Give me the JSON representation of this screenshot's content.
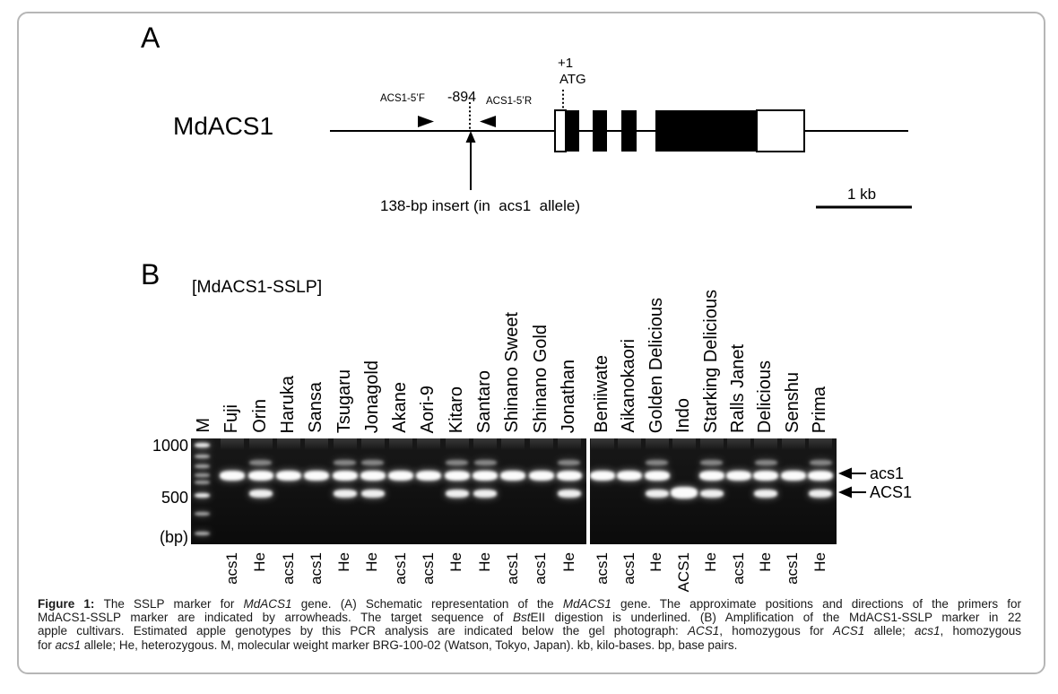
{
  "panel_a": {
    "label": "A",
    "gene_name": "MdACS1",
    "forward_primer": "ACS1-5’F",
    "reverse_primer": "ACS1-5’R",
    "insert_position": "-894",
    "tss": "+1",
    "start_codon": "ATG",
    "insert_note": "138-bp insert (in  acs1  allele)",
    "scale_label": "1 kb"
  },
  "panel_b": {
    "label": "B",
    "assay_title": "[MdACS1-SSLP]",
    "marker_lane_label": "M",
    "ladder": {
      "top_label": "1000",
      "mid_label": "500",
      "unit_label": "(bp)"
    },
    "band_labels": {
      "upper": "acs1",
      "lower": "ACS1"
    },
    "sections": [
      {
        "lanes": [
          {
            "name": "Fuji",
            "genotype": "acs1"
          },
          {
            "name": "Orin",
            "genotype": "He"
          },
          {
            "name": "Haruka",
            "genotype": "acs1"
          },
          {
            "name": "Sansa",
            "genotype": "acs1"
          },
          {
            "name": "Tsugaru",
            "genotype": "He"
          },
          {
            "name": "Jonagold",
            "genotype": "He"
          },
          {
            "name": "Akane",
            "genotype": "acs1"
          },
          {
            "name": "Aori-9",
            "genotype": "acs1"
          },
          {
            "name": "Kitaro",
            "genotype": "He"
          },
          {
            "name": "Santaro",
            "genotype": "He"
          },
          {
            "name": "Shinano Sweet",
            "genotype": "acs1"
          },
          {
            "name": "Shinano Gold",
            "genotype": "acs1"
          },
          {
            "name": "Jonathan",
            "genotype": "He"
          }
        ]
      },
      {
        "lanes": [
          {
            "name": "Beniiwate",
            "genotype": "acs1"
          },
          {
            "name": "Aikanokaori",
            "genotype": "acs1"
          },
          {
            "name": "Golden Delicious",
            "genotype": "He"
          },
          {
            "name": "Indo",
            "genotype": "ACS1"
          },
          {
            "name": "Starking Delicious",
            "genotype": "He"
          },
          {
            "name": "Ralls Janet",
            "genotype": "acs1"
          },
          {
            "name": "Delicious",
            "genotype": "He"
          },
          {
            "name": "Senshu",
            "genotype": "acs1"
          },
          {
            "name": "Prima",
            "genotype": "He"
          }
        ]
      }
    ]
  },
  "caption": {
    "lines": [
      {
        "justify": true,
        "segments": [
          {
            "t": "Figure 1: ",
            "b": true
          },
          {
            "t": "The SSLP marker for "
          },
          {
            "t": "MdACS1",
            "i": true
          },
          {
            "t": " gene. (A) Schematic representation of the "
          },
          {
            "t": "MdACS1",
            "i": true
          },
          {
            "t": " gene. The approximate positions and directions of the primers for"
          }
        ]
      },
      {
        "justify": true,
        "segments": [
          {
            "t": "MdACS1-SSLP marker are indicated by arrowheads. The target sequence of "
          },
          {
            "t": "Bst",
            "i": true
          },
          {
            "t": "EII digestion is underlined. (B) Amplification of the MdACS1-SSLP marker in 22"
          }
        ]
      },
      {
        "justify": true,
        "segments": [
          {
            "t": "apple cultivars. Estimated apple genotypes by this PCR analysis are indicated below the gel photograph: "
          },
          {
            "t": "ACS1",
            "i": true
          },
          {
            "t": ", homozygous for "
          },
          {
            "t": "ACS1",
            "i": true
          },
          {
            "t": " allele; "
          },
          {
            "t": "acs1",
            "i": true
          },
          {
            "t": ", homozygous"
          }
        ]
      },
      {
        "justify": false,
        "segments": [
          {
            "t": "for "
          },
          {
            "t": "acs1",
            "i": true
          },
          {
            "t": " allele; He, heterozygous. M, molecular weight marker BRG-100-02 (Watson, Tokyo, Japan). kb, kilo-bases. bp, base pairs."
          }
        ]
      }
    ]
  }
}
